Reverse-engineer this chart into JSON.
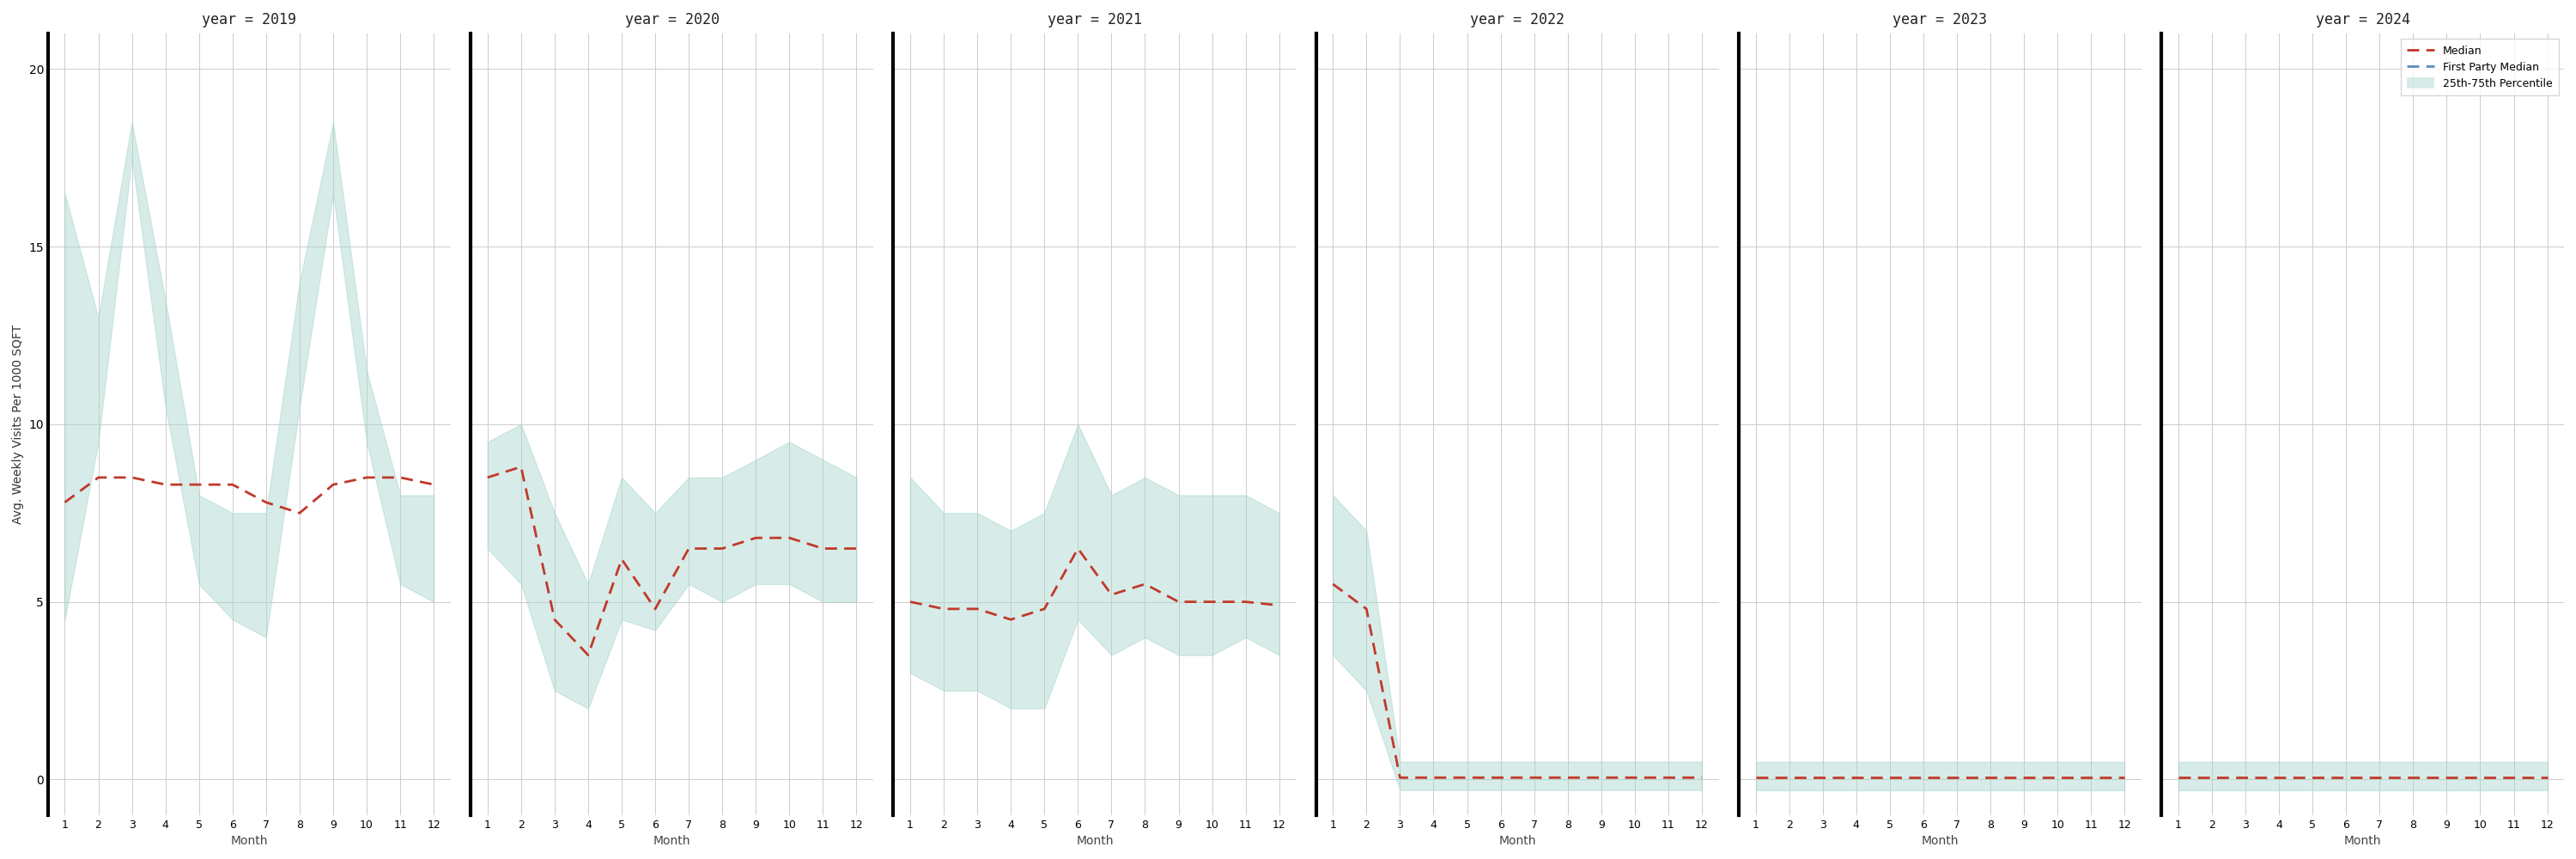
{
  "years": [
    2019,
    2020,
    2021,
    2022,
    2023,
    2024
  ],
  "months": [
    1,
    2,
    3,
    4,
    5,
    6,
    7,
    8,
    9,
    10,
    11,
    12
  ],
  "median": {
    "2019": [
      7.8,
      8.5,
      8.5,
      8.3,
      8.3,
      8.3,
      7.8,
      7.5,
      8.3,
      8.5,
      8.5,
      8.3
    ],
    "2020": [
      8.5,
      8.8,
      4.5,
      3.5,
      6.2,
      4.8,
      6.5,
      6.5,
      6.8,
      6.8,
      6.5,
      6.5
    ],
    "2021": [
      5.0,
      4.8,
      4.8,
      4.5,
      4.8,
      6.5,
      5.2,
      5.5,
      5.0,
      5.0,
      5.0,
      4.9
    ],
    "2022": [
      5.5,
      4.8,
      0.05,
      0.05,
      0.05,
      0.05,
      0.05,
      0.05,
      0.05,
      0.05,
      0.05,
      0.05
    ],
    "2023": [
      0.05,
      0.05,
      0.05,
      0.05,
      0.05,
      0.05,
      0.05,
      0.05,
      0.05,
      0.05,
      0.05,
      0.05
    ],
    "2024": [
      0.05,
      0.05,
      0.05,
      0.05,
      0.05,
      0.05,
      0.05,
      0.05,
      0.05,
      0.05,
      0.05,
      0.05
    ]
  },
  "p25": {
    "2019": [
      4.5,
      9.5,
      17.5,
      10.5,
      5.5,
      4.5,
      4.0,
      10.5,
      16.5,
      9.5,
      5.5,
      5.0
    ],
    "2020": [
      6.5,
      5.5,
      2.5,
      2.0,
      4.5,
      4.2,
      5.5,
      5.0,
      5.5,
      5.5,
      5.0,
      5.0
    ],
    "2021": [
      3.0,
      2.5,
      2.5,
      2.0,
      2.0,
      4.5,
      3.5,
      4.0,
      3.5,
      3.5,
      4.0,
      3.5
    ],
    "2022": [
      3.5,
      2.5,
      -0.3,
      -0.3,
      -0.3,
      -0.3,
      -0.3,
      -0.3,
      -0.3,
      -0.3,
      -0.3,
      -0.3
    ],
    "2023": [
      -0.3,
      -0.3,
      -0.3,
      -0.3,
      -0.3,
      -0.3,
      -0.3,
      -0.3,
      -0.3,
      -0.3,
      -0.3,
      -0.3
    ],
    "2024": [
      -0.3,
      -0.3,
      -0.3,
      -0.3,
      -0.3,
      -0.3,
      -0.3,
      -0.3,
      -0.3,
      -0.3,
      -0.3,
      -0.3
    ]
  },
  "p75": {
    "2019": [
      16.5,
      13.0,
      18.5,
      13.5,
      8.0,
      7.5,
      7.5,
      14.0,
      18.5,
      11.5,
      8.0,
      8.0
    ],
    "2020": [
      9.5,
      10.0,
      7.5,
      5.5,
      8.5,
      7.5,
      8.5,
      8.5,
      9.0,
      9.5,
      9.0,
      8.5
    ],
    "2021": [
      8.5,
      7.5,
      7.5,
      7.0,
      7.5,
      10.0,
      8.0,
      8.5,
      8.0,
      8.0,
      8.0,
      7.5
    ],
    "2022": [
      8.0,
      7.0,
      0.5,
      0.5,
      0.5,
      0.5,
      0.5,
      0.5,
      0.5,
      0.5,
      0.5,
      0.5
    ],
    "2023": [
      0.5,
      0.5,
      0.5,
      0.5,
      0.5,
      0.5,
      0.5,
      0.5,
      0.5,
      0.5,
      0.5,
      0.5
    ],
    "2024": [
      0.5,
      0.5,
      0.5,
      0.5,
      0.5,
      0.5,
      0.5,
      0.5,
      0.5,
      0.5,
      0.5,
      0.5
    ]
  },
  "fill_color": "#a8d5cc",
  "fill_alpha": 0.45,
  "median_color": "#c0392b",
  "fp_color": "#5b8db8",
  "ylabel": "Avg. Weekly Visits Per 1000 SQFT",
  "xlabel": "Month",
  "ylim": [
    -1,
    21
  ],
  "yticks": [
    0,
    5,
    10,
    15,
    20
  ],
  "xticks": [
    1,
    2,
    3,
    4,
    5,
    6,
    7,
    8,
    9,
    10,
    11,
    12
  ],
  "title_prefix": "year = ",
  "bg_color": "#ffffff",
  "grid_color": "#cccccc"
}
